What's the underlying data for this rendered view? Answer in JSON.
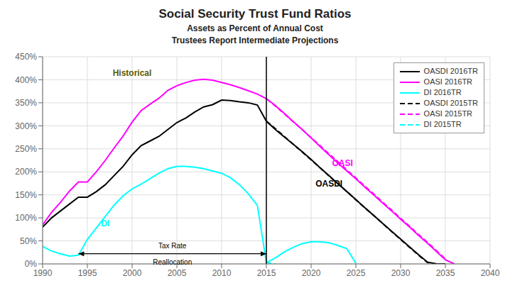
{
  "chart_data": {
    "type": "line",
    "title": "Social Security Trust Fund Ratios",
    "subtitle": [
      "Assets as Percent of Annual Cost",
      "Trustees Report Intermediate Projections"
    ],
    "xlim": [
      1990,
      2040
    ],
    "ylim": [
      0,
      450
    ],
    "xticks": [
      1990,
      1995,
      2000,
      2005,
      2010,
      2015,
      2020,
      2025,
      2030,
      2035,
      2040
    ],
    "yticks": [
      {
        "value": 0,
        "label": "0%"
      },
      {
        "value": 50,
        "label": "50%"
      },
      {
        "value": 100,
        "label": "100%"
      },
      {
        "value": 150,
        "label": "150%"
      },
      {
        "value": 200,
        "label": "200%"
      },
      {
        "value": 250,
        "label": "250%"
      },
      {
        "value": 300,
        "label": "300%"
      },
      {
        "value": 350,
        "label": "350%"
      },
      {
        "value": 400,
        "label": "400%"
      },
      {
        "value": 450,
        "label": "450%"
      }
    ],
    "grid": true,
    "legend": "upper right",
    "series": [
      {
        "name": "OASDI 2016TR",
        "color": "black",
        "line_style": "solid",
        "x": [
          1990,
          1991,
          1992,
          1993,
          1994,
          1995,
          1996,
          1997,
          1998,
          1999,
          2000,
          2001,
          2002,
          2003,
          2004,
          2005,
          2006,
          2007,
          2008,
          2009,
          2010,
          2011,
          2012,
          2013,
          2014,
          2015,
          2016,
          2017,
          2018,
          2019,
          2020,
          2021,
          2022,
          2023,
          2024,
          2025,
          2026,
          2027,
          2028,
          2029,
          2030,
          2031,
          2032,
          2033,
          2034,
          2035
        ],
        "values": [
          80,
          100,
          115,
          130,
          145,
          145,
          157,
          172,
          192,
          212,
          237,
          257,
          267,
          277,
          292,
          307,
          317,
          330,
          341,
          346,
          356,
          355,
          352,
          350,
          345,
          310,
          292,
          276,
          260,
          244,
          227,
          209,
          192,
          174,
          157,
          140,
          122,
          105,
          88,
          71,
          54,
          37,
          20,
          4,
          0,
          0
        ]
      },
      {
        "name": "OASI 2016TR",
        "color": "magenta",
        "line_style": "solid",
        "x": [
          1990,
          1991,
          1992,
          1993,
          1994,
          1995,
          1996,
          1997,
          1998,
          1999,
          2000,
          2001,
          2002,
          2003,
          2004,
          2005,
          2006,
          2007,
          2008,
          2009,
          2010,
          2011,
          2012,
          2013,
          2014,
          2015,
          2016,
          2017,
          2018,
          2019,
          2020,
          2021,
          2022,
          2023,
          2024,
          2025,
          2026,
          2027,
          2028,
          2029,
          2030,
          2031,
          2032,
          2033,
          2034,
          2035,
          2036
        ],
        "values": [
          85,
          112,
          134,
          158,
          178,
          178,
          200,
          225,
          252,
          278,
          308,
          333,
          347,
          360,
          377,
          387,
          394,
          399,
          401,
          399,
          394,
          389,
          383,
          376,
          369,
          359,
          344,
          327,
          309,
          292,
          274,
          255,
          237,
          219,
          202,
          185,
          167,
          150,
          132,
          115,
          97,
          80,
          62,
          45,
          27,
          9,
          0
        ]
      },
      {
        "name": "DI 2016TR",
        "color": "cyan",
        "line_style": "solid",
        "x": [
          1990,
          1991,
          1992,
          1993,
          1994,
          1995,
          1996,
          1997,
          1998,
          1999,
          2000,
          2001,
          2002,
          2003,
          2004,
          2005,
          2006,
          2007,
          2008,
          2009,
          2010,
          2011,
          2012,
          2013,
          2014,
          2015,
          2016,
          2017,
          2018,
          2019,
          2020,
          2021,
          2022,
          2023,
          2024,
          2025
        ],
        "values": [
          38,
          28,
          22,
          17,
          19,
          53,
          78,
          103,
          128,
          148,
          163,
          173,
          185,
          197,
          207,
          212,
          212,
          210,
          207,
          202,
          197,
          187,
          172,
          152,
          127,
          3,
          13,
          26,
          36,
          44,
          48,
          48,
          46,
          40,
          33,
          1
        ]
      },
      {
        "name": "OASDI 2015TR",
        "color": "black",
        "line_style": "dashed",
        "x": [
          2015,
          2016,
          2017,
          2018,
          2019,
          2020,
          2021,
          2022,
          2023,
          2024,
          2025,
          2026,
          2027,
          2028,
          2029,
          2030,
          2031,
          2032,
          2033,
          2034
        ],
        "values": [
          310,
          294,
          277,
          260,
          243,
          226,
          209,
          191,
          174,
          157,
          139,
          122,
          105,
          88,
          70,
          53,
          36,
          19,
          3,
          0
        ]
      },
      {
        "name": "OASI 2015TR",
        "color": "magenta",
        "line_style": "dashed",
        "x": [
          2015,
          2016,
          2017,
          2018,
          2019,
          2020,
          2021,
          2022,
          2023,
          2024,
          2025,
          2026,
          2027,
          2028,
          2029,
          2030,
          2031,
          2032,
          2033,
          2034,
          2035
        ],
        "values": [
          359,
          343,
          326,
          309,
          292,
          274,
          257,
          239,
          222,
          204,
          187,
          169,
          152,
          134,
          117,
          99,
          82,
          64,
          47,
          29,
          11
        ]
      },
      {
        "name": "DI 2015TR",
        "color": "cyan",
        "line_style": "dashed",
        "x": [
          2015,
          2016
        ],
        "values": [
          3,
          0
        ]
      }
    ],
    "annotations": [
      {
        "type": "vline",
        "x": 2015,
        "color": "black"
      },
      {
        "type": "arrow",
        "x1": 1994,
        "x2": 2015,
        "y": 22,
        "color": "black"
      },
      {
        "type": "text",
        "text": "Historical",
        "x": 2000,
        "y": 415,
        "color": "#5a5a00"
      },
      {
        "type": "text",
        "text": "Tax Rate",
        "x": 2004.5,
        "y": 30,
        "color": "black"
      },
      {
        "type": "text",
        "text": "Reallocation",
        "x": 2004.5,
        "y": 14,
        "color": "black"
      },
      {
        "type": "text",
        "text": "OASI",
        "x": 2023.5,
        "y": 220,
        "color": "magenta"
      },
      {
        "type": "text",
        "text": "OASDI",
        "x": 2022,
        "y": 175,
        "color": "black"
      },
      {
        "type": "text",
        "text": "DI",
        "x": 1997,
        "y": 88,
        "color": "cyan"
      }
    ]
  }
}
